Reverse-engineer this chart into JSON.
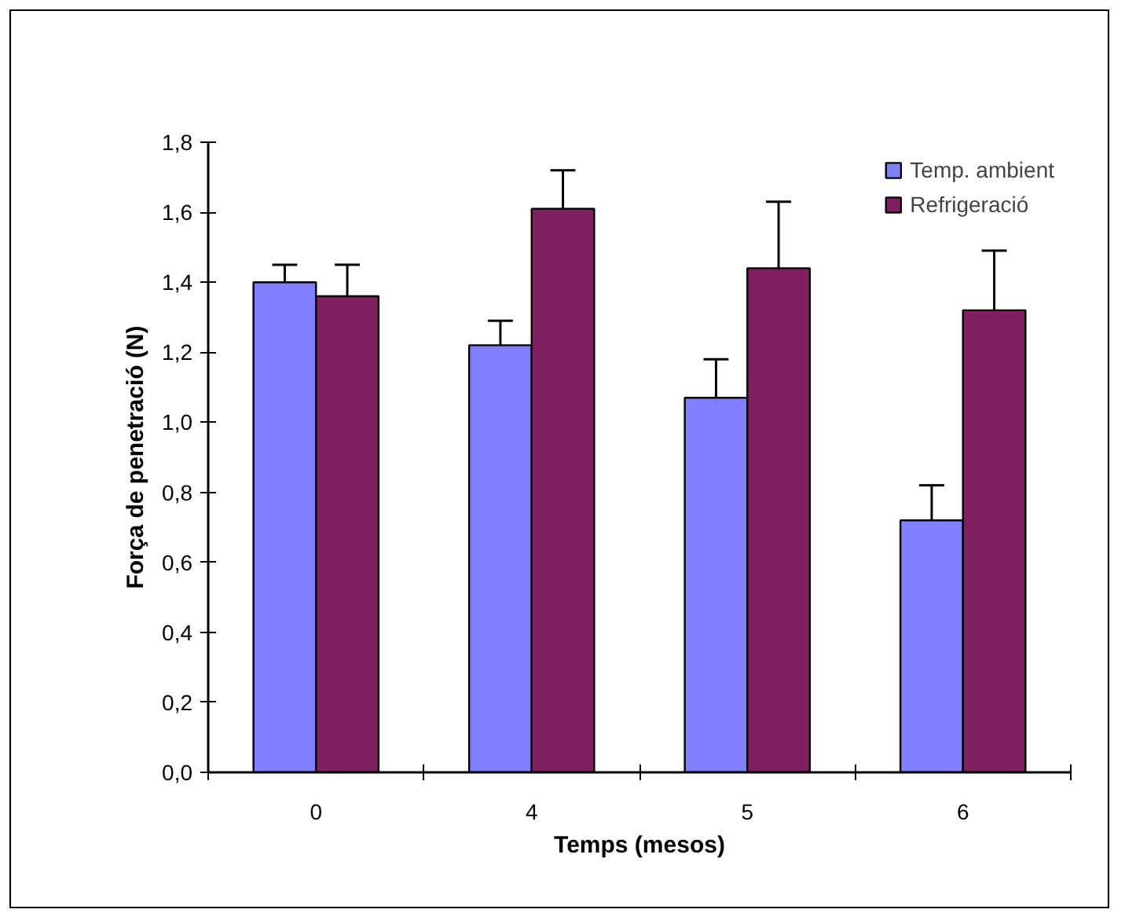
{
  "chart_data": {
    "type": "bar",
    "xlabel": "Temps (mesos)",
    "ylabel": "Força de penetració (N)",
    "categories": [
      "0",
      "4",
      "5",
      "6"
    ],
    "series": [
      {
        "name": "Temp. ambient",
        "color": "#8080ff",
        "values": [
          1.4,
          1.22,
          1.07,
          0.72
        ],
        "errors": [
          [
            1.4,
            1.45
          ],
          [
            1.22,
            1.29
          ],
          [
            1.07,
            1.18
          ],
          [
            0.72,
            0.82
          ]
        ]
      },
      {
        "name": "Refrigeració",
        "color": "#802060",
        "values": [
          1.36,
          1.61,
          1.44,
          1.32
        ],
        "errors": [
          [
            1.36,
            1.45
          ],
          [
            1.61,
            1.72
          ],
          [
            1.44,
            1.63
          ],
          [
            1.32,
            1.49
          ]
        ]
      }
    ],
    "ylim": [
      0,
      1.8
    ],
    "yticks": [
      {
        "value": 0,
        "label": "0,0"
      },
      {
        "value": 0.2,
        "label": "0,2"
      },
      {
        "value": 0.4,
        "label": "0,4"
      },
      {
        "value": 0.6,
        "label": "0,6"
      },
      {
        "value": 0.8,
        "label": "0,8"
      },
      {
        "value": 1.0,
        "label": "1,0"
      },
      {
        "value": 1.2,
        "label": "1,2"
      },
      {
        "value": 1.4,
        "label": "1,4"
      },
      {
        "value": 1.6,
        "label": "1,6"
      },
      {
        "value": 1.8,
        "label": "1,8"
      }
    ],
    "grid": false,
    "legend": "top right"
  }
}
